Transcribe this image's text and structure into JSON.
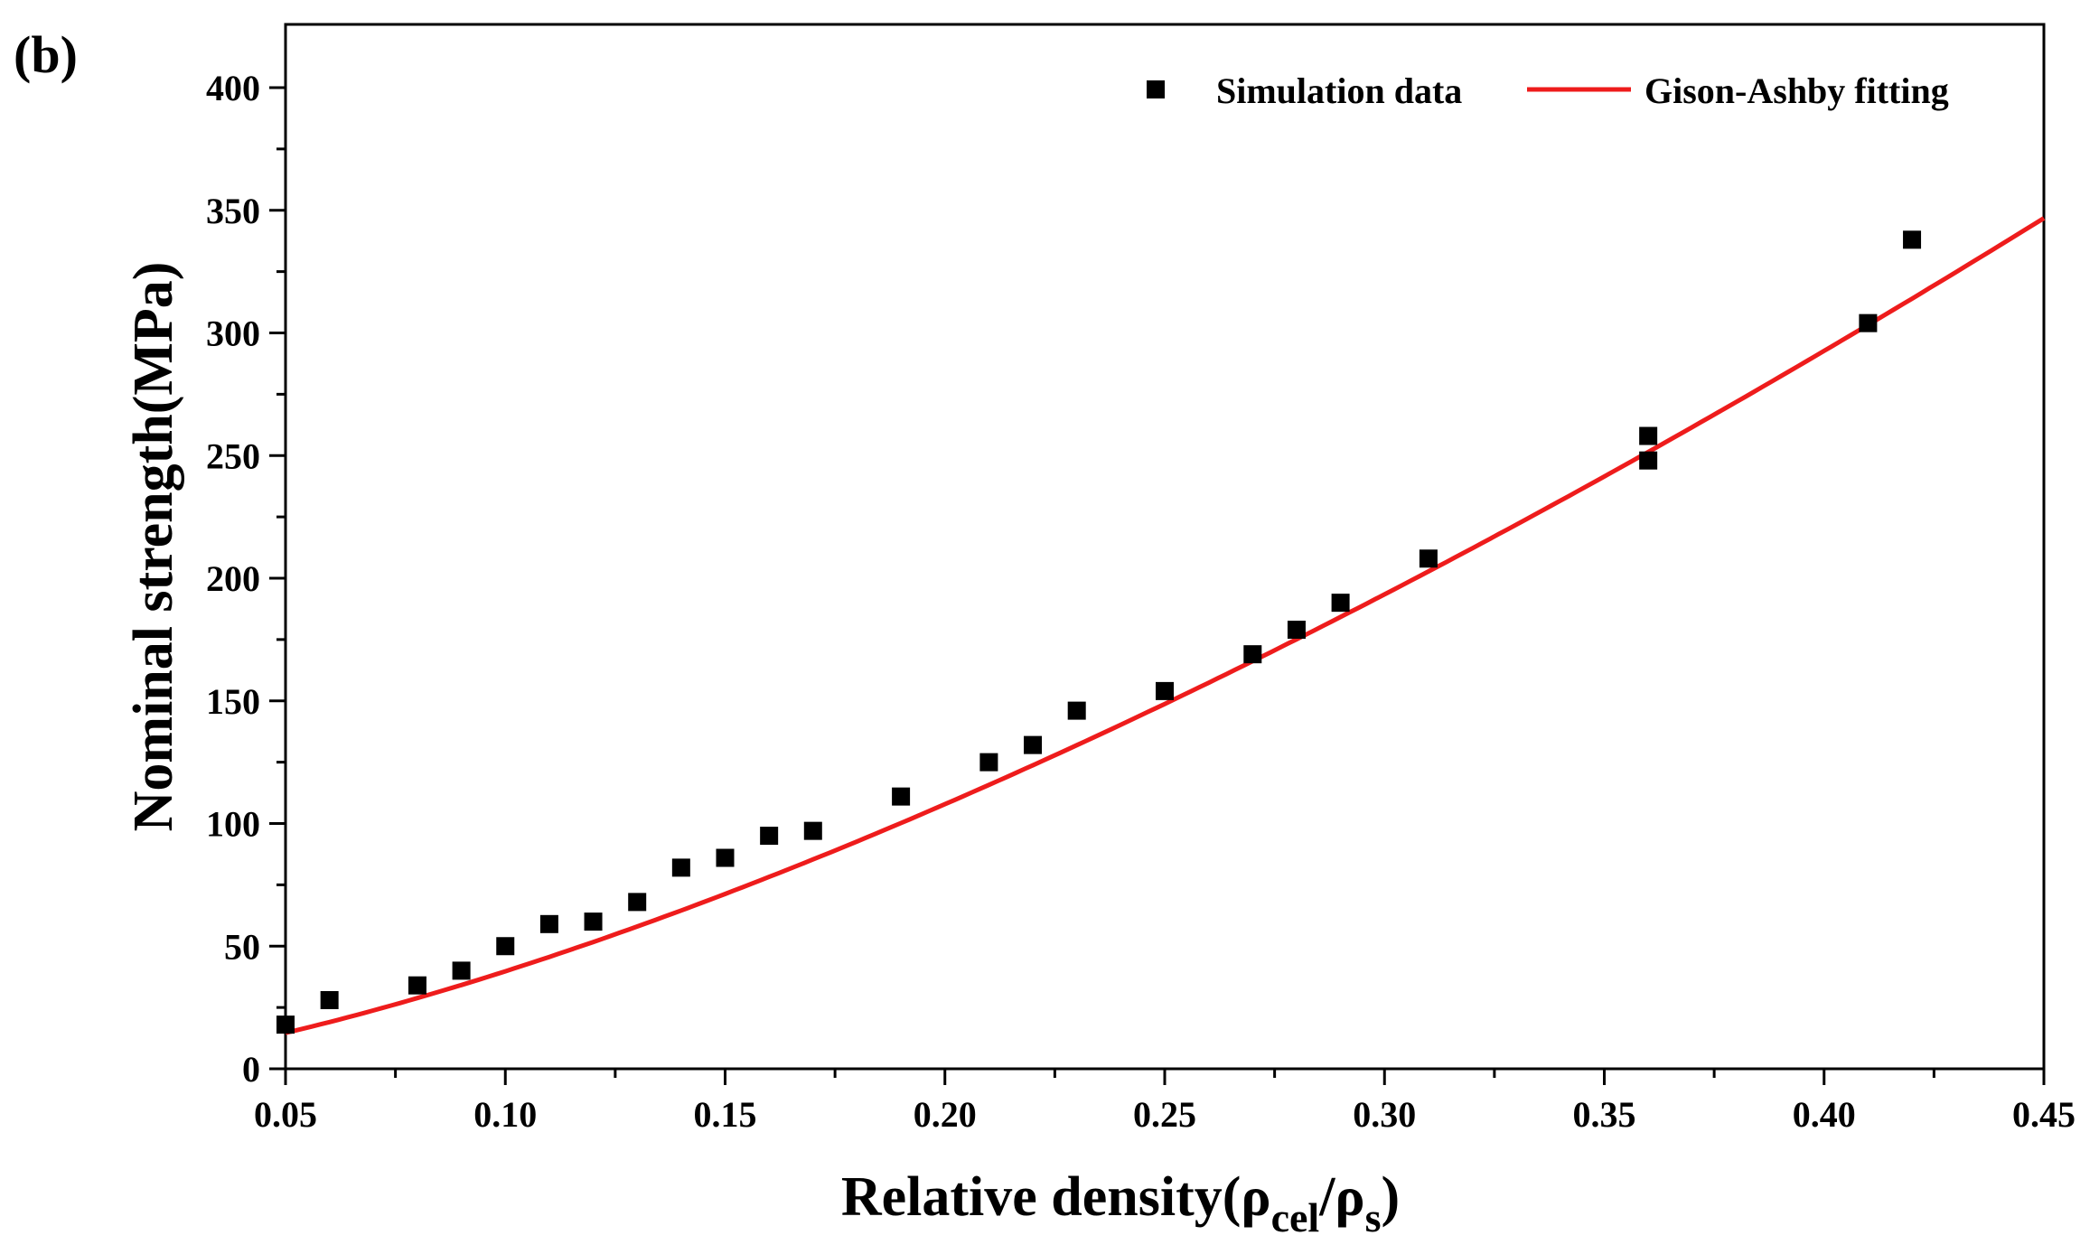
{
  "chart_data": {
    "type": "scatter",
    "panel_label": "(b)",
    "xlabel": {
      "main": "Relative density(ρ",
      "sub1": "cel",
      "mid": "/ρ",
      "sub2": "s",
      "end": ")"
    },
    "ylabel": "Nominal strength(MPa)",
    "xlim": [
      0.05,
      0.45
    ],
    "ylim": [
      0,
      425
    ],
    "x_ticks": [
      0.05,
      0.1,
      0.15,
      0.2,
      0.25,
      0.3,
      0.35,
      0.4,
      0.45
    ],
    "x_tick_labels": [
      "0.05",
      "0.10",
      "0.15",
      "0.20",
      "0.25",
      "0.30",
      "0.35",
      "0.40",
      "0.45"
    ],
    "y_ticks": [
      0,
      50,
      100,
      150,
      200,
      250,
      300,
      350,
      400
    ],
    "y_tick_labels": [
      "0",
      "50",
      "100",
      "150",
      "200",
      "250",
      "300",
      "350",
      "400"
    ],
    "legend_position": "top-right",
    "series": [
      {
        "name": "Simulation data",
        "kind": "scatter",
        "marker": "square",
        "color": "#000000",
        "x": [
          0.05,
          0.06,
          0.08,
          0.09,
          0.1,
          0.11,
          0.12,
          0.13,
          0.14,
          0.15,
          0.16,
          0.17,
          0.19,
          0.21,
          0.22,
          0.23,
          0.25,
          0.27,
          0.28,
          0.29,
          0.31,
          0.36,
          0.36,
          0.41,
          0.42
        ],
        "y": [
          18,
          28,
          34,
          40,
          50,
          59,
          60,
          68,
          82,
          86,
          95,
          97,
          111,
          125,
          132,
          146,
          154,
          169,
          179,
          190,
          208,
          248,
          258,
          304,
          338
        ]
      },
      {
        "name": "Gison-Ashby fitting",
        "kind": "line",
        "color": "#ee1c1c",
        "coefficient": 1095,
        "exponent": 1.44
      }
    ]
  }
}
